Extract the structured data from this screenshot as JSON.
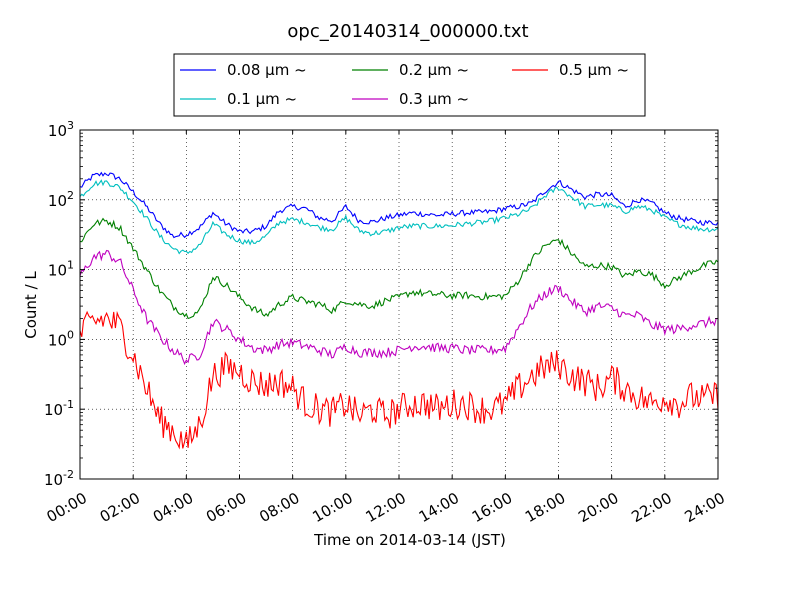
{
  "chart_data": {
    "type": "line",
    "title": "opc_20140314_000000.txt",
    "xlabel": "Time on 2014-03-14 (JST)",
    "ylabel": "Count / L",
    "x_ticks": [
      "00:00",
      "02:00",
      "04:00",
      "06:00",
      "08:00",
      "10:00",
      "12:00",
      "14:00",
      "16:00",
      "18:00",
      "20:00",
      "22:00",
      "24:00"
    ],
    "x_range_hours": [
      0,
      24
    ],
    "ylim": [
      0.01,
      1000
    ],
    "yscale": "log",
    "y_ticks": [
      {
        "base": "10",
        "exp": "-2",
        "value": 0.01
      },
      {
        "base": "10",
        "exp": "-1",
        "value": 0.1
      },
      {
        "base": "10",
        "exp": "0",
        "value": 1
      },
      {
        "base": "10",
        "exp": "1",
        "value": 10
      },
      {
        "base": "10",
        "exp": "2",
        "value": 100
      },
      {
        "base": "10",
        "exp": "3",
        "value": 1000
      }
    ],
    "grid": true,
    "legend_position": "top",
    "x_hours": [
      0,
      0.5,
      1,
      1.5,
      2,
      2.5,
      3,
      3.5,
      4,
      4.5,
      5,
      5.5,
      6,
      6.5,
      7,
      7.5,
      8,
      8.5,
      9,
      9.5,
      10,
      10.5,
      11,
      11.5,
      12,
      12.5,
      13,
      13.5,
      14,
      14.5,
      15,
      15.5,
      16,
      16.5,
      17,
      17.5,
      18,
      18.5,
      19,
      19.5,
      20,
      20.5,
      21,
      21.5,
      22,
      22.5,
      23,
      23.5,
      24
    ],
    "series": [
      {
        "name": "0.08 μm ~",
        "color": "#0000ff",
        "noise": 0.04,
        "values": [
          150,
          220,
          240,
          200,
          130,
          80,
          45,
          30,
          32,
          40,
          65,
          45,
          35,
          35,
          42,
          70,
          80,
          75,
          55,
          50,
          80,
          50,
          48,
          55,
          60,
          65,
          62,
          60,
          63,
          65,
          66,
          68,
          75,
          80,
          90,
          135,
          180,
          140,
          110,
          120,
          115,
          80,
          100,
          90,
          65,
          55,
          50,
          47,
          47
        ]
      },
      {
        "name": "0.1 μm ~",
        "color": "#00bfbf",
        "noise": 0.04,
        "values": [
          110,
          170,
          180,
          150,
          95,
          55,
          30,
          20,
          17,
          22,
          45,
          32,
          26,
          24,
          30,
          48,
          52,
          48,
          40,
          38,
          55,
          36,
          33,
          35,
          40,
          42,
          42,
          42,
          43,
          45,
          47,
          50,
          55,
          62,
          75,
          115,
          150,
          110,
          80,
          85,
          82,
          68,
          80,
          72,
          55,
          45,
          40,
          38,
          38
        ]
      },
      {
        "name": "0.2 μm ~",
        "color": "#008000",
        "noise": 0.05,
        "values": [
          25,
          45,
          50,
          40,
          20,
          10,
          5,
          3,
          2.2,
          2.5,
          8,
          6,
          4,
          2.8,
          2.2,
          3.2,
          4,
          3.5,
          3.2,
          2.6,
          3.6,
          3.2,
          3,
          3.6,
          4,
          4.8,
          4.5,
          4.4,
          4.2,
          4.3,
          4.1,
          4.1,
          4.2,
          7,
          14,
          22,
          27,
          17,
          11,
          11.5,
          11,
          8,
          9.5,
          8.5,
          6,
          7.5,
          9.5,
          11.5,
          13
        ]
      },
      {
        "name": "0.3 μm ~",
        "color": "#bf00bf",
        "noise": 0.07,
        "values": [
          8,
          15,
          17,
          13,
          5,
          2,
          1.1,
          0.7,
          0.5,
          0.6,
          1.8,
          1.4,
          1,
          0.75,
          0.7,
          0.85,
          0.9,
          0.8,
          0.7,
          0.6,
          0.8,
          0.65,
          0.65,
          0.65,
          0.7,
          0.8,
          0.8,
          0.75,
          0.75,
          0.7,
          0.7,
          0.7,
          0.75,
          1.5,
          3,
          4.5,
          5.5,
          3.5,
          2.5,
          3,
          2.8,
          2.2,
          2.2,
          1.6,
          1.4,
          1.4,
          1.6,
          1.7,
          1.9
        ]
      },
      {
        "name": "0.5 μm ~",
        "color": "#ff0000",
        "noise": 0.22,
        "values": [
          1.2,
          1.8,
          2,
          1.5,
          0.6,
          0.2,
          0.07,
          0.05,
          0.03,
          0.06,
          0.3,
          0.4,
          0.35,
          0.25,
          0.22,
          0.25,
          0.2,
          0.12,
          0.1,
          0.09,
          0.12,
          0.08,
          0.1,
          0.08,
          0.1,
          0.12,
          0.12,
          0.1,
          0.12,
          0.12,
          0.1,
          0.1,
          0.12,
          0.2,
          0.3,
          0.4,
          0.45,
          0.3,
          0.25,
          0.2,
          0.28,
          0.2,
          0.15,
          0.12,
          0.15,
          0.12,
          0.15,
          0.14,
          0.16
        ]
      }
    ]
  }
}
